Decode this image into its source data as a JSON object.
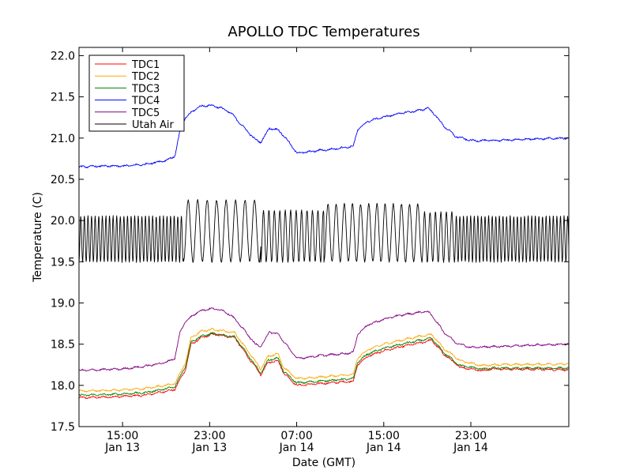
{
  "chart_data": {
    "type": "line",
    "title": "APOLLO TDC Temperatures",
    "xlabel": "Date (GMT)",
    "ylabel": "Temperature (C)",
    "x_unit": "hours since Jan 13 11:00 GMT",
    "xlim": [
      0,
      45
    ],
    "ylim": [
      17.5,
      22.1
    ],
    "y_ticks": [
      17.5,
      18.0,
      18.5,
      19.0,
      19.5,
      20.0,
      20.5,
      21.0,
      21.5,
      22.0
    ],
    "y_tick_labels": [
      "17.5",
      "18.0",
      "18.5",
      "19.0",
      "19.5",
      "20.0",
      "20.5",
      "21.0",
      "21.5",
      "22.0"
    ],
    "x_ticks": [
      {
        "x": 4,
        "time": "15:00",
        "date": "Jan 13"
      },
      {
        "x": 12,
        "time": "23:00",
        "date": "Jan 13"
      },
      {
        "x": 20,
        "time": "07:00",
        "date": "Jan 14"
      },
      {
        "x": 28,
        "time": "15:00",
        "date": "Jan 14"
      },
      {
        "x": 36,
        "time": "23:00",
        "date": "Jan 14"
      }
    ],
    "legend_position": "top-left",
    "series": [
      {
        "name": "TDC1",
        "color": "#ff0000",
        "x": [
          0,
          3,
          6,
          8.8,
          9.8,
          10.3,
          11.3,
          12.3,
          13.3,
          14.3,
          15.5,
          16.7,
          17.4,
          18.3,
          18.8,
          20,
          22,
          24,
          25.2,
          25.6,
          26.5,
          28,
          30,
          31.5,
          32.4,
          33.5,
          35,
          37,
          38,
          45
        ],
        "values": [
          17.85,
          17.86,
          17.88,
          17.95,
          18.2,
          18.5,
          18.58,
          18.62,
          18.6,
          18.58,
          18.35,
          18.13,
          18.28,
          18.3,
          18.15,
          18.0,
          18.02,
          18.04,
          18.05,
          18.25,
          18.35,
          18.42,
          18.48,
          18.52,
          18.55,
          18.38,
          18.22,
          18.18,
          18.2,
          18.19
        ]
      },
      {
        "name": "TDC2",
        "color": "#ffa500",
        "x": [
          0,
          3,
          6,
          8.8,
          9.8,
          10.3,
          11.3,
          12.3,
          13.3,
          14.3,
          15.5,
          16.7,
          17.4,
          18.3,
          18.8,
          20,
          22,
          24,
          25.2,
          25.6,
          26.5,
          28,
          30,
          31.5,
          32.4,
          33.5,
          35,
          37,
          38,
          45
        ],
        "values": [
          17.93,
          17.94,
          17.96,
          18.02,
          18.28,
          18.58,
          18.66,
          18.68,
          18.66,
          18.64,
          18.42,
          18.2,
          18.36,
          18.38,
          18.22,
          18.08,
          18.1,
          18.12,
          18.13,
          18.33,
          18.43,
          18.5,
          18.56,
          18.6,
          18.62,
          18.45,
          18.3,
          18.24,
          18.25,
          18.26
        ]
      },
      {
        "name": "TDC3",
        "color": "#008000",
        "x": [
          0,
          3,
          6,
          8.8,
          9.8,
          10.3,
          11.3,
          12.3,
          13.3,
          14.3,
          15.5,
          16.7,
          17.4,
          18.3,
          18.8,
          20,
          22,
          24,
          25.2,
          25.6,
          26.5,
          28,
          30,
          31.5,
          32.4,
          33.5,
          35,
          37,
          38,
          45
        ],
        "values": [
          17.88,
          17.89,
          17.91,
          17.98,
          18.24,
          18.53,
          18.6,
          18.63,
          18.61,
          18.59,
          18.37,
          18.15,
          18.31,
          18.33,
          18.17,
          18.03,
          18.05,
          18.07,
          18.08,
          18.28,
          18.38,
          18.45,
          18.51,
          18.55,
          18.57,
          18.4,
          18.24,
          18.2,
          18.21,
          18.21
        ]
      },
      {
        "name": "TDC4",
        "color": "#0000ff",
        "x": [
          0,
          2,
          4,
          6,
          8,
          8.8,
          9.3,
          9.8,
          10.5,
          11,
          12,
          13,
          14,
          15,
          16.2,
          16.7,
          17.5,
          18.3,
          19,
          20,
          21,
          22,
          23,
          24,
          25.2,
          25.6,
          26.5,
          27.5,
          28.5,
          29.5,
          30.5,
          31.5,
          32,
          32.6,
          33.5,
          34.6,
          36,
          38,
          40,
          42,
          45
        ],
        "values": [
          20.65,
          20.66,
          20.66,
          20.68,
          20.73,
          20.78,
          21.1,
          21.25,
          21.33,
          21.38,
          21.4,
          21.37,
          21.3,
          21.15,
          20.98,
          20.95,
          21.12,
          21.1,
          21.0,
          20.82,
          20.83,
          20.85,
          20.86,
          20.88,
          20.9,
          21.1,
          21.2,
          21.24,
          21.27,
          21.3,
          21.32,
          21.34,
          21.37,
          21.3,
          21.15,
          21.02,
          20.97,
          20.97,
          20.98,
          20.99,
          21.0
        ]
      },
      {
        "name": "TDC5",
        "color": "#800080",
        "x": [
          0,
          2,
          4,
          6,
          8,
          8.8,
          9.3,
          9.8,
          10.5,
          11,
          12,
          13,
          14,
          15,
          16.2,
          16.7,
          17.5,
          18.3,
          19,
          20,
          21,
          22,
          23,
          24,
          25.2,
          25.6,
          26.5,
          27.5,
          28.5,
          29.5,
          30.5,
          31.5,
          32,
          32.6,
          33.5,
          34.6,
          36,
          38,
          40,
          42,
          45
        ],
        "values": [
          18.18,
          18.19,
          18.2,
          18.23,
          18.28,
          18.33,
          18.65,
          18.78,
          18.85,
          18.9,
          18.93,
          18.92,
          18.85,
          18.7,
          18.5,
          18.47,
          18.65,
          18.62,
          18.5,
          18.33,
          18.34,
          18.36,
          18.37,
          18.38,
          18.4,
          18.62,
          18.73,
          18.78,
          18.82,
          18.85,
          18.87,
          18.89,
          18.9,
          18.82,
          18.65,
          18.52,
          18.46,
          18.47,
          18.48,
          18.49,
          18.5
        ]
      },
      {
        "name": "Utah Air",
        "color": "#000000",
        "oscillation": [
          {
            "x_start": 0,
            "x_end": 9.6,
            "period": 0.33,
            "min": 19.5,
            "max": 20.05
          },
          {
            "x_start": 9.6,
            "x_end": 16.7,
            "period": 0.87,
            "min": 19.5,
            "max": 20.25
          },
          {
            "x_start": 16.7,
            "x_end": 22.5,
            "period": 0.5,
            "min": 19.5,
            "max": 20.12
          },
          {
            "x_start": 22.5,
            "x_end": 31.5,
            "period": 0.75,
            "min": 19.5,
            "max": 20.2
          },
          {
            "x_start": 31.5,
            "x_end": 34.5,
            "period": 0.5,
            "min": 19.5,
            "max": 20.1
          },
          {
            "x_start": 34.5,
            "x_end": 45,
            "period": 0.33,
            "min": 19.5,
            "max": 20.05
          }
        ]
      }
    ]
  }
}
